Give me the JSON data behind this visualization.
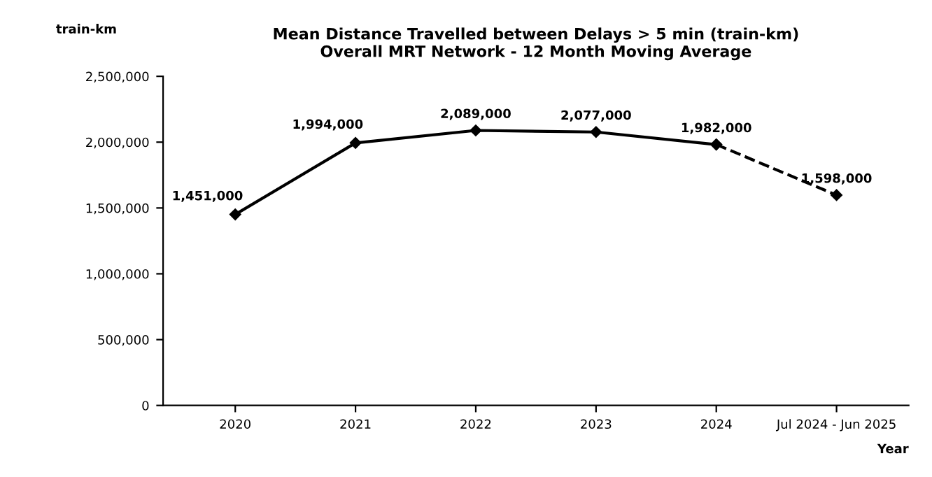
{
  "chart_data": {
    "type": "line",
    "title": "Mean Distance Travelled between Delays > 5 min (train-km)\nOverall MRT Network - 12 Month Moving Average",
    "categories": [
      "2020",
      "2021",
      "2022",
      "2023",
      "2024",
      "Jul 2024 - Jun 2025"
    ],
    "series": [
      {
        "color": "#000000",
        "line_style": "solid",
        "values": [
          1451000,
          1994000,
          2089000,
          2077000,
          1982000,
          null
        ],
        "value_labels": [
          "1,451,000",
          "1,994,000",
          "2,089,000",
          "2,077,000",
          "1,982,000",
          null
        ]
      },
      {
        "color": "#000000",
        "line_style": "dashed",
        "values": [
          null,
          null,
          null,
          null,
          1982000,
          1598000
        ],
        "value_labels": [
          null,
          null,
          null,
          null,
          null,
          "1,598,000"
        ]
      }
    ],
    "ylabel": "train-km",
    "xlabel": "Year",
    "ylim": [
      0,
      2500000
    ],
    "yticks": [
      {
        "value": 0,
        "label": "0"
      },
      {
        "value": 500000,
        "label": "500,000"
      },
      {
        "value": 1000000,
        "label": "1,000,000"
      },
      {
        "value": 1500000,
        "label": "1,500,000"
      },
      {
        "value": 2000000,
        "label": "2,000,000"
      },
      {
        "value": 2500000,
        "label": "2,500,000"
      }
    ],
    "marker": "diamond",
    "grid": false
  }
}
